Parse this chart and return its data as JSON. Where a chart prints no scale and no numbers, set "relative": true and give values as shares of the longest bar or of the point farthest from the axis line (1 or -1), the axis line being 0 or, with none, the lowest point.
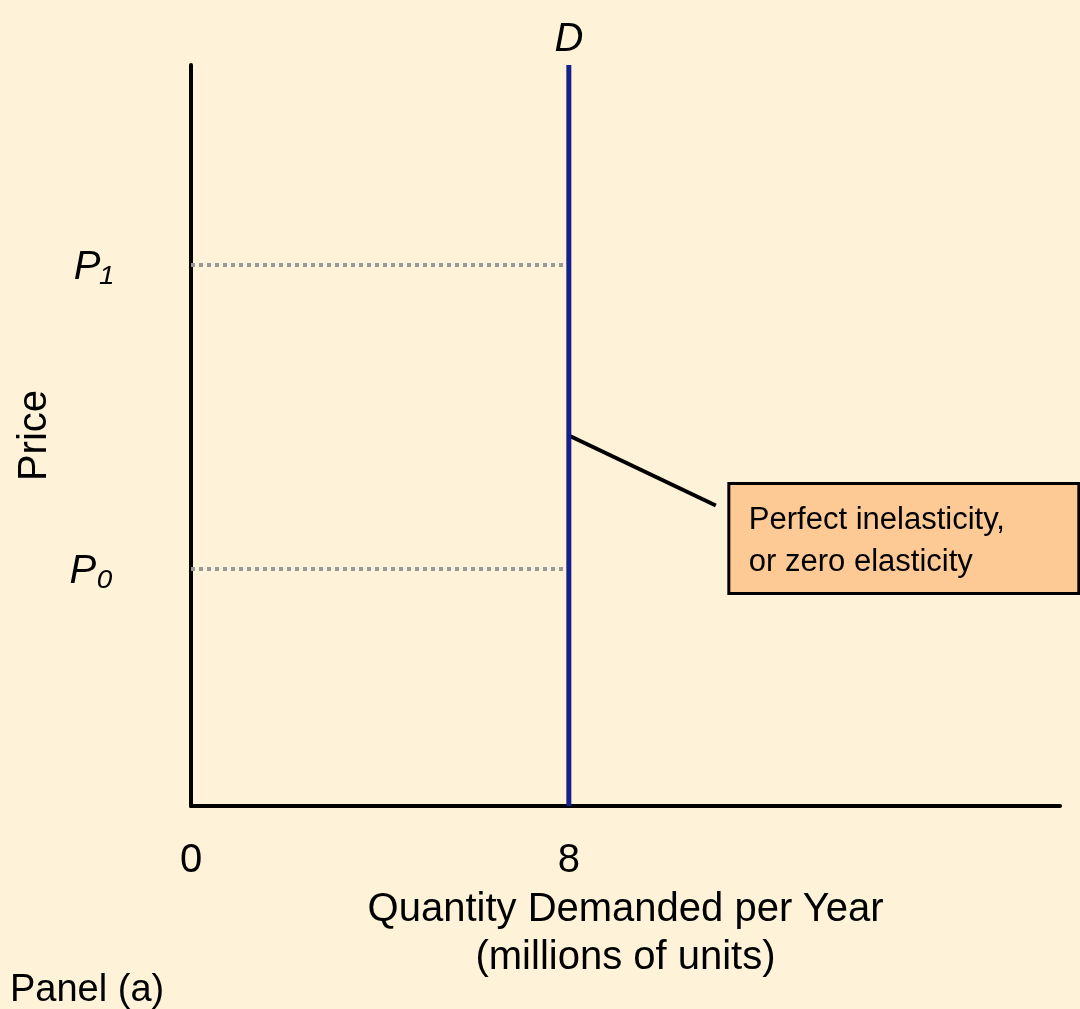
{
  "chart_data": {
    "type": "line",
    "xlabel": "Quantity Demanded per Year\n(millions of units)",
    "ylabel": "Price",
    "series": [
      {
        "name": "D",
        "color": "#14218c",
        "x": [
          8,
          8
        ],
        "values": [
          0,
          1
        ]
      }
    ],
    "xlim": [
      0,
      18.4
    ],
    "xticks": [
      0,
      8
    ],
    "relative": true,
    "ref_lines": [
      {
        "axis": "y",
        "value": 0.32,
        "label": "P₀",
        "color": "#999999",
        "line_style": "dotted"
      },
      {
        "axis": "y",
        "value": 0.73,
        "label": "P₁",
        "color": "#999999",
        "line_style": "dotted"
      }
    ],
    "annotations": [
      {
        "text": "Perfect inelasticity,\nor zero elasticity",
        "x": 8,
        "y": 0.5
      },
      "Panel (a)"
    ],
    "legend": false,
    "marker": "none",
    "line_style": "solid"
  }
}
